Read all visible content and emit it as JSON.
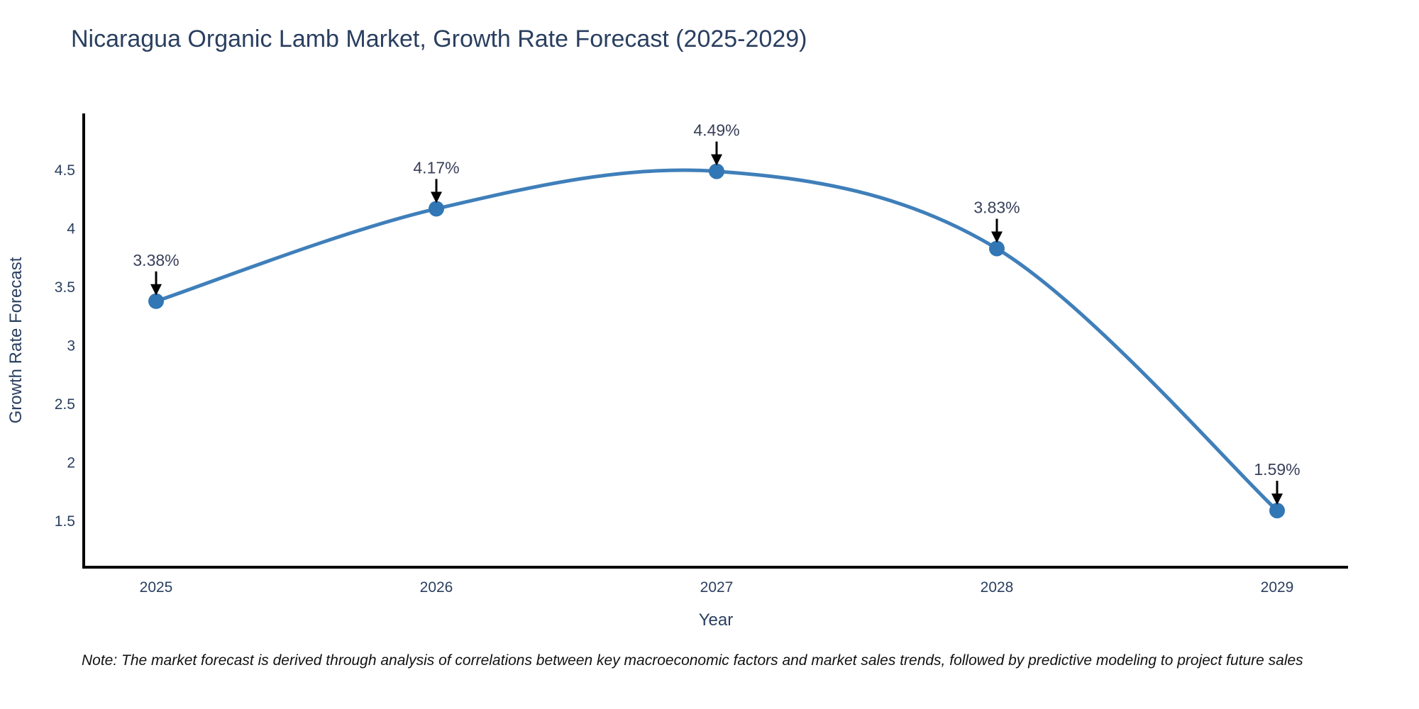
{
  "page": {
    "background": "#ffffff"
  },
  "note": {
    "text": "Note: The market forecast is derived through analysis of correlations between key macroeconomic factors and market sales trends, followed by predictive modeling to project future sales"
  },
  "chart_data": {
    "type": "line",
    "title": "Nicaragua Organic Lamb Market, Growth Rate Forecast (2025-2029)",
    "xlabel": "Year",
    "ylabel": "Growth Rate Forecast",
    "categories": [
      "2025",
      "2026",
      "2027",
      "2028",
      "2029"
    ],
    "series": [
      {
        "name": "Growth Rate Forecast",
        "values": [
          3.38,
          4.17,
          4.49,
          3.83,
          1.59
        ]
      }
    ],
    "point_labels": [
      "3.38%",
      "4.17%",
      "4.49%",
      "3.83%",
      "1.59%"
    ],
    "y_ticks": [
      4.5,
      4,
      3.5,
      3,
      2.5,
      2,
      1.5
    ],
    "y_tick_labels": [
      "4.5",
      "4",
      "3.5",
      "3",
      "2.5",
      "2",
      "1.5"
    ],
    "ylim": [
      1.1,
      5.0
    ],
    "xlim_categories": [
      "2024.73",
      "2029.25"
    ],
    "line_shape": "spline",
    "grid": false,
    "legend_position": "none",
    "colors": {
      "line": "#3f7fba",
      "marker": "#3277b5",
      "arrow": "#000000",
      "axis": "#000000",
      "text": "#2a3f5f",
      "annotation_text": "#38405a",
      "note_text": "#111111",
      "background": "#ffffff"
    }
  }
}
